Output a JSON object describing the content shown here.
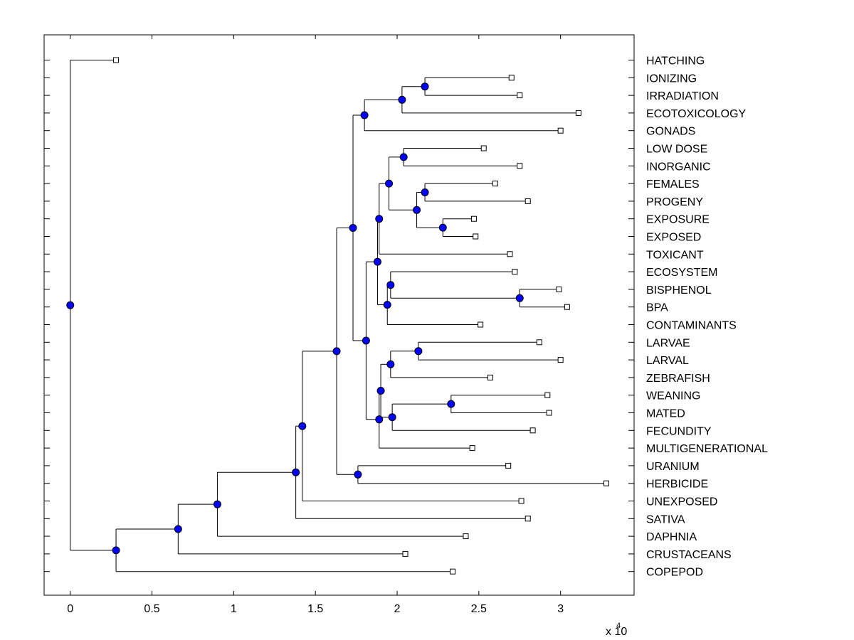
{
  "chart_data": {
    "type": "dendrogram",
    "title": "",
    "xlabel": "",
    "ylabel": "",
    "xlim": [
      -0.16,
      3.45
    ],
    "x_scale_label": "x 10",
    "x_scale_exponent": "4",
    "x_ticks": [
      {
        "value": 0,
        "label": "0"
      },
      {
        "value": 0.5,
        "label": "0.5"
      },
      {
        "value": 1,
        "label": "1"
      },
      {
        "value": 1.5,
        "label": "1.5"
      },
      {
        "value": 2,
        "label": "2"
      },
      {
        "value": 2.5,
        "label": "2.5"
      },
      {
        "value": 3,
        "label": "3"
      }
    ],
    "grid": false,
    "colors": {
      "node": "#0000ff",
      "line": "#000000",
      "leaf_marker": "#ffffff"
    },
    "leaves": [
      {
        "label": "HATCHING",
        "x": 0.28
      },
      {
        "label": "IONIZING",
        "x": 2.7
      },
      {
        "label": "IRRADIATION",
        "x": 2.75
      },
      {
        "label": "ECOTOXICOLOGY",
        "x": 3.11
      },
      {
        "label": "GONADS",
        "x": 3.0
      },
      {
        "label": "LOW DOSE",
        "x": 2.53
      },
      {
        "label": "INORGANIC",
        "x": 2.75
      },
      {
        "label": "FEMALES",
        "x": 2.6
      },
      {
        "label": "PROGENY",
        "x": 2.8
      },
      {
        "label": "EXPOSURE",
        "x": 2.47
      },
      {
        "label": "EXPOSED",
        "x": 2.48
      },
      {
        "label": "TOXICANT",
        "x": 2.69
      },
      {
        "label": "ECOSYSTEM",
        "x": 2.72
      },
      {
        "label": "BISPHENOL",
        "x": 2.99
      },
      {
        "label": "BPA",
        "x": 3.04
      },
      {
        "label": "CONTAMINANTS",
        "x": 2.51
      },
      {
        "label": "LARVAE",
        "x": 2.87
      },
      {
        "label": "LARVAL",
        "x": 3.0
      },
      {
        "label": "ZEBRAFISH",
        "x": 2.57
      },
      {
        "label": "WEANING",
        "x": 2.92
      },
      {
        "label": "MATED",
        "x": 2.93
      },
      {
        "label": "FECUNDITY",
        "x": 2.83
      },
      {
        "label": "MULTIGENERATIONAL",
        "x": 2.46
      },
      {
        "label": "URANIUM",
        "x": 2.68
      },
      {
        "label": "HERBICIDE",
        "x": 3.28
      },
      {
        "label": "UNEXPOSED",
        "x": 2.76
      },
      {
        "label": "SATIVA",
        "x": 2.8
      },
      {
        "label": "DAPHNIA",
        "x": 2.42
      },
      {
        "label": "CRUSTACEANS",
        "x": 2.05
      },
      {
        "label": "COPEPOD",
        "x": 2.34
      }
    ],
    "merges": [
      {
        "id": "n1",
        "x": 2.17,
        "children": [
          "IONIZING",
          "IRRADIATION"
        ]
      },
      {
        "id": "n2",
        "x": 2.03,
        "children": [
          "n1",
          "ECOTOXICOLOGY"
        ]
      },
      {
        "id": "n3",
        "x": 1.8,
        "children": [
          "n2",
          "GONADS"
        ]
      },
      {
        "id": "n4",
        "x": 2.04,
        "children": [
          "LOW DOSE",
          "INORGANIC"
        ]
      },
      {
        "id": "n5",
        "x": 2.17,
        "children": [
          "FEMALES",
          "PROGENY"
        ]
      },
      {
        "id": "n6",
        "x": 2.28,
        "children": [
          "EXPOSURE",
          "EXPOSED"
        ]
      },
      {
        "id": "n7",
        "x": 2.12,
        "children": [
          "n5",
          "n6"
        ]
      },
      {
        "id": "n8",
        "x": 1.95,
        "children": [
          "n4",
          "n7"
        ]
      },
      {
        "id": "n9",
        "x": 1.89,
        "children": [
          "n8",
          "TOXICANT"
        ]
      },
      {
        "id": "n10",
        "x": 2.75,
        "children": [
          "BISPHENOL",
          "BPA"
        ]
      },
      {
        "id": "n11",
        "x": 1.96,
        "children": [
          "ECOSYSTEM",
          "n10"
        ]
      },
      {
        "id": "n12",
        "x": 1.94,
        "children": [
          "n11",
          "CONTAMINANTS"
        ]
      },
      {
        "id": "n13",
        "x": 1.88,
        "children": [
          "n9",
          "n12"
        ]
      },
      {
        "id": "n14",
        "x": 2.13,
        "children": [
          "LARVAE",
          "LARVAL"
        ]
      },
      {
        "id": "n15",
        "x": 1.96,
        "children": [
          "n14",
          "ZEBRAFISH"
        ]
      },
      {
        "id": "n16",
        "x": 2.33,
        "children": [
          "WEANING",
          "MATED"
        ]
      },
      {
        "id": "n17",
        "x": 1.97,
        "children": [
          "n16",
          "FECUNDITY"
        ]
      },
      {
        "id": "n18",
        "x": 1.9,
        "children": [
          "n15",
          "n17"
        ]
      },
      {
        "id": "n19",
        "x": 1.89,
        "children": [
          "n18",
          "MULTIGENERATIONAL"
        ]
      },
      {
        "id": "n20",
        "x": 1.81,
        "children": [
          "n13",
          "n19"
        ]
      },
      {
        "id": "n21",
        "x": 1.73,
        "children": [
          "n3",
          "n20"
        ]
      },
      {
        "id": "n22",
        "x": 1.76,
        "children": [
          "URANIUM",
          "HERBICIDE"
        ]
      },
      {
        "id": "n23",
        "x": 1.63,
        "children": [
          "n21",
          "n22"
        ]
      },
      {
        "id": "n24",
        "x": 1.42,
        "children": [
          "n23",
          "UNEXPOSED"
        ]
      },
      {
        "id": "n25",
        "x": 1.38,
        "children": [
          "n24",
          "SATIVA"
        ]
      },
      {
        "id": "n26",
        "x": 0.9,
        "children": [
          "n25",
          "DAPHNIA"
        ]
      },
      {
        "id": "n27",
        "x": 0.66,
        "children": [
          "n26",
          "CRUSTACEANS"
        ]
      },
      {
        "id": "n28",
        "x": 0.28,
        "children": [
          "n27",
          "COPEPOD"
        ]
      },
      {
        "id": "n29",
        "x": 0.0,
        "children": [
          "HATCHING",
          "n28"
        ]
      }
    ]
  }
}
